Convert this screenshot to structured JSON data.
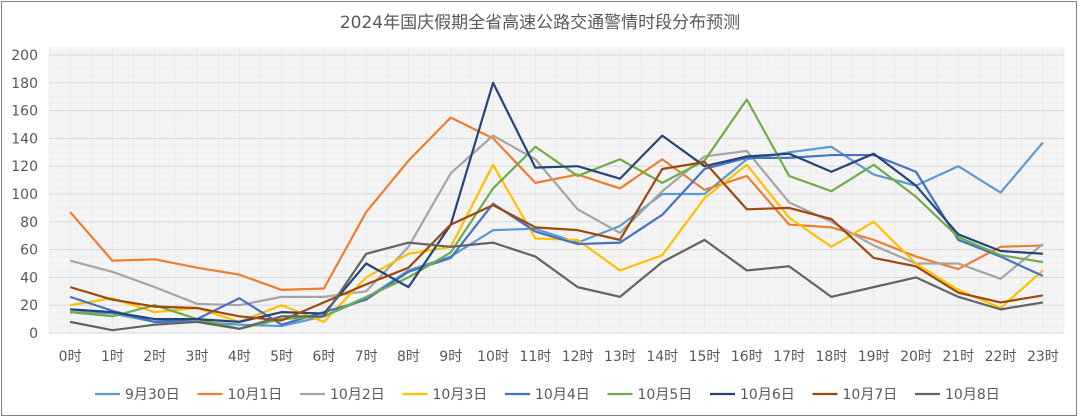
{
  "chart_data": {
    "type": "line",
    "title": "2024年国庆假期全省高速公路交通警情时段分布预测",
    "xlabel": "",
    "ylabel": "",
    "ylim": [
      0,
      200
    ],
    "yticks": [
      0,
      20,
      40,
      60,
      80,
      100,
      120,
      140,
      160,
      180,
      200
    ],
    "grid": true,
    "legend": "bottom",
    "categories": [
      "0时",
      "1时",
      "2时",
      "3时",
      "4时",
      "5时",
      "6时",
      "7时",
      "8时",
      "9时",
      "10时",
      "11时",
      "12时",
      "13时",
      "14时",
      "15时",
      "16时",
      "17时",
      "18时",
      "19时",
      "20时",
      "21时",
      "22时",
      "23时"
    ],
    "series": [
      {
        "name": "9月30日",
        "color": "#5b9bd5",
        "values": [
          15,
          14,
          8,
          8,
          6,
          5,
          12,
          25,
          45,
          55,
          74,
          75,
          65,
          77,
          100,
          100,
          125,
          130,
          134,
          114,
          106,
          120,
          101,
          137
        ]
      },
      {
        "name": "10月1日",
        "color": "#ed7d31",
        "values": [
          87,
          52,
          53,
          47,
          42,
          31,
          32,
          87,
          124,
          155,
          140,
          108,
          114,
          104,
          125,
          103,
          113,
          78,
          76,
          67,
          55,
          46,
          62,
          63
        ]
      },
      {
        "name": "10月2日",
        "color": "#a5a5a5",
        "values": [
          52,
          44,
          33,
          21,
          20,
          26,
          26,
          30,
          62,
          115,
          142,
          125,
          89,
          72,
          102,
          127,
          131,
          94,
          80,
          63,
          50,
          50,
          39,
          64
        ]
      },
      {
        "name": "10月3日",
        "color": "#ffc000",
        "values": [
          20,
          25,
          15,
          18,
          8,
          20,
          8,
          40,
          57,
          62,
          121,
          68,
          67,
          45,
          56,
          97,
          121,
          83,
          62,
          80,
          50,
          31,
          18,
          45
        ]
      },
      {
        "name": "10月4日",
        "color": "#4472c4",
        "values": [
          26,
          16,
          8,
          10,
          25,
          6,
          15,
          24,
          44,
          54,
          93,
          73,
          64,
          65,
          85,
          118,
          126,
          126,
          128,
          128,
          116,
          67,
          55,
          41
        ]
      },
      {
        "name": "10月5日",
        "color": "#70ad47",
        "values": [
          15,
          12,
          20,
          10,
          3,
          10,
          12,
          26,
          40,
          58,
          104,
          134,
          113,
          125,
          108,
          124,
          168,
          113,
          102,
          121,
          98,
          69,
          56,
          51
        ]
      },
      {
        "name": "10月6日",
        "color": "#264478",
        "values": [
          17,
          15,
          10,
          10,
          8,
          15,
          14,
          50,
          33,
          78,
          180,
          119,
          120,
          111,
          142,
          120,
          127,
          129,
          116,
          129,
          106,
          71,
          59,
          57
        ]
      },
      {
        "name": "10月7日",
        "color": "#9e480e",
        "values": [
          33,
          24,
          19,
          18,
          12,
          9,
          22,
          35,
          47,
          78,
          92,
          76,
          74,
          67,
          118,
          123,
          89,
          90,
          82,
          54,
          48,
          29,
          22,
          27
        ]
      },
      {
        "name": "10月8日",
        "color": "#636363",
        "values": [
          8,
          2,
          6,
          8,
          3,
          12,
          12,
          57,
          65,
          62,
          65,
          55,
          33,
          26,
          51,
          67,
          45,
          48,
          26,
          33,
          40,
          26,
          17,
          22
        ]
      }
    ]
  }
}
